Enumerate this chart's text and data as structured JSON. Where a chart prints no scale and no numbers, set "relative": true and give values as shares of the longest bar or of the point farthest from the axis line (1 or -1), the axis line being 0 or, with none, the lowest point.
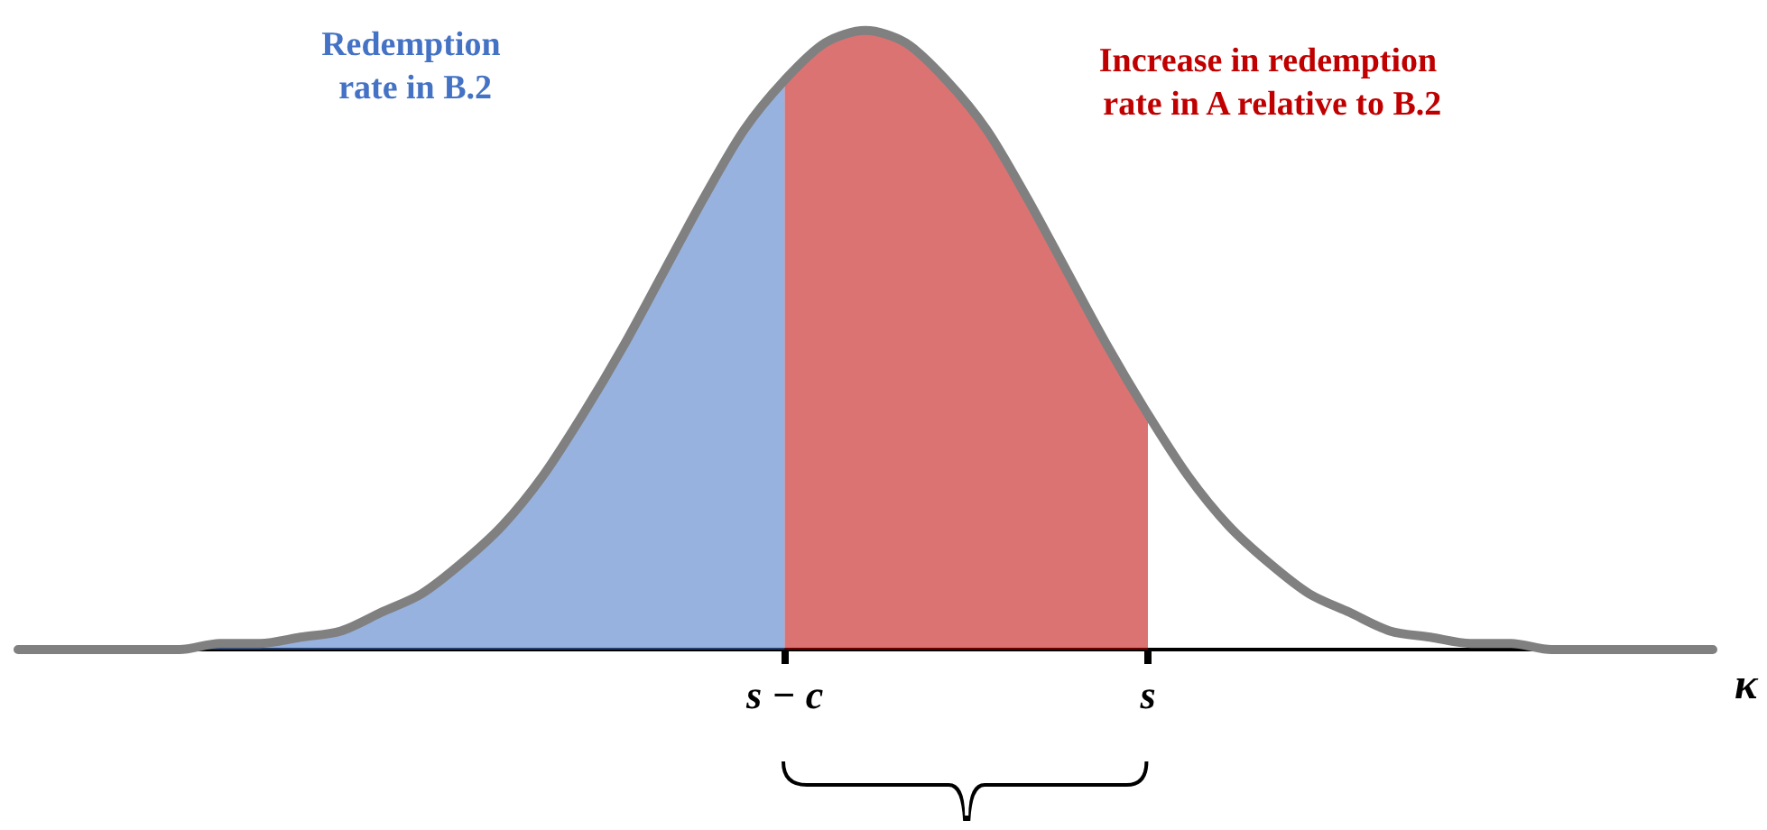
{
  "chart_data": {
    "type": "area",
    "relative": true,
    "xlabel": "κ",
    "categories": [
      null,
      null,
      null,
      null,
      null,
      null,
      null,
      null,
      null,
      null,
      null,
      null,
      null,
      null,
      null,
      null,
      null,
      null,
      null,
      "s − c",
      null,
      null,
      null,
      null,
      null,
      null,
      null,
      null,
      "s",
      null,
      null,
      null,
      null,
      null,
      null,
      null,
      null,
      null,
      null,
      null,
      null,
      null,
      null
    ],
    "grid": false,
    "marker": "none",
    "line_style": "solid",
    "series": [
      {
        "color": "#4472c4",
        "values": [
          0,
          0,
          0,
          0,
          0,
          0.01,
          0.01,
          0.02,
          0.03,
          0.06,
          0.09,
          0.14,
          0.2,
          0.28,
          0.38,
          0.49,
          0.61,
          0.73,
          0.84,
          0.92,
          null,
          null,
          null,
          null,
          null,
          null,
          null,
          null,
          null,
          null,
          null,
          null,
          null,
          null,
          null,
          null,
          null,
          null,
          null,
          null,
          null,
          null,
          null
        ]
      },
      {
        "color": "#c00000",
        "values": [
          null,
          null,
          null,
          null,
          null,
          null,
          null,
          null,
          null,
          null,
          null,
          null,
          null,
          null,
          null,
          null,
          null,
          null,
          null,
          0.92,
          0.98,
          1,
          0.98,
          0.92,
          0.84,
          0.73,
          0.61,
          0.49,
          0.38,
          null,
          null,
          null,
          null,
          null,
          null,
          null,
          null,
          null,
          null,
          null,
          null,
          null,
          null
        ]
      },
      {
        "type": "line",
        "color": "#808080",
        "values": [
          0,
          0,
          0,
          0,
          0,
          0.01,
          0.01,
          0.02,
          0.03,
          0.06,
          0.09,
          0.14,
          0.2,
          0.28,
          0.38,
          0.49,
          0.61,
          0.73,
          0.84,
          0.92,
          0.98,
          1,
          0.98,
          0.92,
          0.84,
          0.73,
          0.61,
          0.49,
          0.38,
          0.28,
          0.2,
          0.14,
          0.09,
          0.06,
          0.03,
          0.02,
          0.01,
          0.01,
          0,
          0,
          0,
          0,
          0
        ]
      }
    ],
    "annotations": [
      "Redemption rate in B.2",
      "Increase in redemption rate in A relative to B.2"
    ]
  }
}
